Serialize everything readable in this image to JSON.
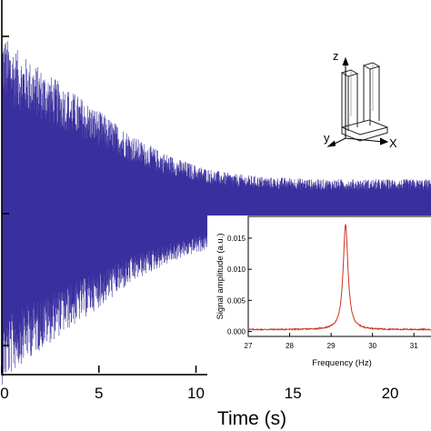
{
  "chart_data": [
    {
      "type": "line",
      "description_role": "main",
      "xlabel": "Time (s)",
      "ylabel": "",
      "xlim": [
        0,
        22.2
      ],
      "x_ticks": [
        0,
        5,
        10,
        15,
        20
      ],
      "x_tick_labels": [
        "0",
        "5",
        "10",
        "15",
        "20"
      ],
      "series": [
        {
          "color": "#3a2f9e",
          "envelope_time_s": [
            0,
            1,
            2,
            3,
            4,
            5,
            6,
            7,
            8,
            9,
            10,
            11,
            12,
            13,
            14,
            15,
            16,
            17,
            18,
            19,
            20,
            21,
            22
          ],
          "envelope_amplitude_rel": [
            1.0,
            0.88,
            0.8,
            0.72,
            0.64,
            0.56,
            0.48,
            0.4,
            0.34,
            0.29,
            0.25,
            0.22,
            0.2,
            0.19,
            0.18,
            0.18,
            0.17,
            0.17,
            0.17,
            0.17,
            0.17,
            0.17,
            0.17
          ]
        }
      ],
      "inset_axes_labels": {
        "z": "z",
        "y": "y",
        "x": "X"
      }
    },
    {
      "type": "line",
      "description_role": "inset",
      "xlabel": "Frequency (Hz)",
      "ylabel": "Signal amplitude (a.u.)",
      "xlim": [
        27,
        31.5
      ],
      "ylim": [
        -0.0008,
        0.0185
      ],
      "x_ticks": [
        27,
        28,
        29,
        30,
        31
      ],
      "x_tick_labels": [
        "27",
        "28",
        "29",
        "30",
        "31"
      ],
      "y_ticks": [
        0.0,
        0.005,
        0.01,
        0.015
      ],
      "y_tick_labels": [
        "0.000",
        "0.005",
        "0.010",
        "0.015"
      ],
      "series": [
        {
          "color": "#cc3322",
          "peak_frequency": 29.35,
          "peak_amplitude": 0.0172,
          "baseline": 0.0003
        }
      ]
    }
  ]
}
